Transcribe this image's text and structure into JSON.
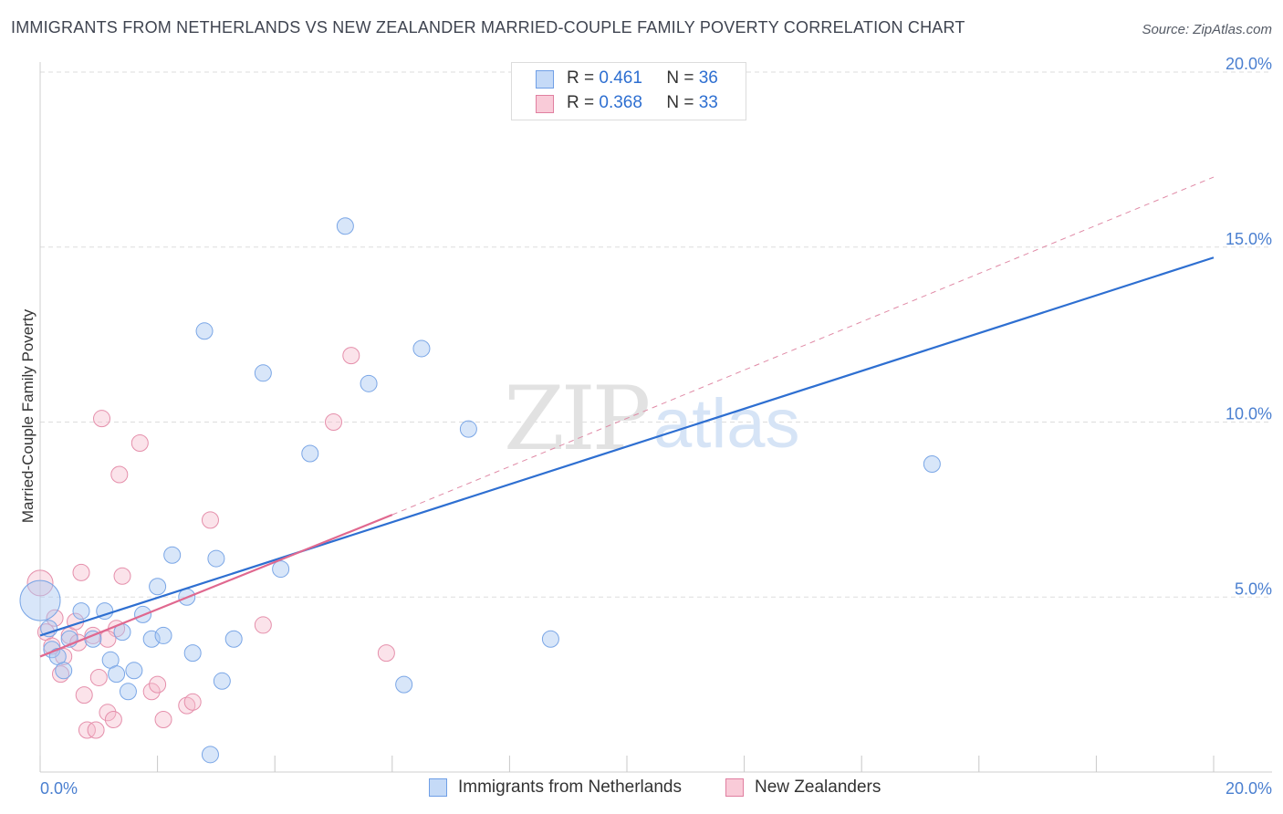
{
  "title": "IMMIGRANTS FROM NETHERLANDS VS NEW ZEALANDER MARRIED-COUPLE FAMILY POVERTY CORRELATION CHART",
  "source": "Source: ZipAtlas.com",
  "watermark": {
    "zip": "ZIP",
    "atlas": "atlas"
  },
  "legend": {
    "r_label": "R =",
    "n_label": "N =",
    "rows": [
      {
        "r": "0.461",
        "n": "36",
        "color": "#6f9fe6",
        "fill": "#c5daf7"
      },
      {
        "r": "0.368",
        "n": "33",
        "color": "#e07fa0",
        "fill": "#f9cbd8"
      }
    ]
  },
  "bottom_legend": {
    "series1": "Immigrants from Netherlands",
    "series2": "New Zealanders"
  },
  "colors": {
    "blue": "#2e6fd1",
    "pink": "#e0688f",
    "grid": "#dddddd",
    "axis_label": "#4a7fd0"
  },
  "chart_data": {
    "type": "scatter",
    "title": "IMMIGRANTS FROM NETHERLANDS VS NEW ZEALANDER MARRIED-COUPLE FAMILY POVERTY CORRELATION CHART",
    "xlabel": "",
    "ylabel": "Married-Couple Family Poverty",
    "xlim": [
      0,
      20
    ],
    "ylim": [
      0,
      20
    ],
    "x_tick_labels": [
      "0.0%",
      "20.0%"
    ],
    "y_ticks": [
      5,
      10,
      15,
      20
    ],
    "y_tick_labels": [
      "5.0%",
      "10.0%",
      "15.0%",
      "20.0%"
    ],
    "series": [
      {
        "name": "Immigrants from Netherlands",
        "r": 0.461,
        "n": 36,
        "points": [
          [
            0.0,
            4.9,
            22
          ],
          [
            0.2,
            3.5,
            9
          ],
          [
            0.3,
            3.3,
            9
          ],
          [
            0.4,
            2.9,
            9
          ],
          [
            0.5,
            3.8,
            9
          ],
          [
            0.7,
            4.6,
            9
          ],
          [
            0.9,
            3.8,
            9
          ],
          [
            1.1,
            4.6,
            9
          ],
          [
            1.2,
            3.2,
            9
          ],
          [
            1.3,
            2.8,
            9
          ],
          [
            1.4,
            4.0,
            9
          ],
          [
            1.5,
            2.3,
            9
          ],
          [
            1.6,
            2.9,
            9
          ],
          [
            1.75,
            4.5,
            9
          ],
          [
            1.9,
            3.8,
            9
          ],
          [
            2.0,
            5.3,
            9
          ],
          [
            2.1,
            3.9,
            9
          ],
          [
            2.25,
            6.2,
            9
          ],
          [
            2.5,
            5.0,
            9
          ],
          [
            2.6,
            3.4,
            9
          ],
          [
            2.8,
            12.6,
            9
          ],
          [
            2.9,
            0.5,
            9
          ],
          [
            3.0,
            6.1,
            9
          ],
          [
            3.1,
            2.6,
            9
          ],
          [
            3.3,
            3.8,
            9
          ],
          [
            3.8,
            11.4,
            9
          ],
          [
            4.1,
            5.8,
            9
          ],
          [
            4.6,
            9.1,
            9
          ],
          [
            5.2,
            15.6,
            9
          ],
          [
            5.6,
            11.1,
            9
          ],
          [
            6.2,
            2.5,
            9
          ],
          [
            6.5,
            12.1,
            9
          ],
          [
            7.3,
            9.8,
            9
          ],
          [
            8.7,
            3.8,
            9
          ],
          [
            15.2,
            8.8,
            9
          ],
          [
            0.15,
            4.1,
            9
          ]
        ],
        "trend": {
          "x": [
            0,
            20
          ],
          "y": [
            3.9,
            14.7
          ]
        }
      },
      {
        "name": "New Zealanders",
        "r": 0.368,
        "n": 33,
        "points": [
          [
            0.0,
            5.4,
            14
          ],
          [
            0.1,
            4.0,
            9
          ],
          [
            0.2,
            3.6,
            9
          ],
          [
            0.25,
            4.4,
            9
          ],
          [
            0.35,
            2.8,
            9
          ],
          [
            0.4,
            3.3,
            9
          ],
          [
            0.5,
            3.9,
            9
          ],
          [
            0.6,
            4.3,
            9
          ],
          [
            0.65,
            3.7,
            9
          ],
          [
            0.7,
            5.7,
            9
          ],
          [
            0.75,
            2.2,
            9
          ],
          [
            0.8,
            1.2,
            9
          ],
          [
            0.9,
            3.9,
            9
          ],
          [
            0.95,
            1.2,
            9
          ],
          [
            1.0,
            2.7,
            9
          ],
          [
            1.05,
            10.1,
            9
          ],
          [
            1.15,
            1.7,
            9
          ],
          [
            1.25,
            1.5,
            9
          ],
          [
            1.3,
            4.1,
            9
          ],
          [
            1.35,
            8.5,
            9
          ],
          [
            1.4,
            5.6,
            9
          ],
          [
            1.7,
            9.4,
            9
          ],
          [
            1.9,
            2.3,
            9
          ],
          [
            2.0,
            2.5,
            9
          ],
          [
            2.1,
            1.5,
            9
          ],
          [
            2.5,
            1.9,
            9
          ],
          [
            2.6,
            2.0,
            9
          ],
          [
            2.9,
            7.2,
            9
          ],
          [
            3.8,
            4.2,
            9
          ],
          [
            5.0,
            10.0,
            9
          ],
          [
            5.3,
            11.9,
            9
          ],
          [
            5.9,
            3.4,
            9
          ],
          [
            1.15,
            3.8,
            9
          ]
        ],
        "trend": {
          "x": [
            0,
            6.0
          ],
          "y": [
            3.3,
            7.35
          ]
        },
        "trend_extended": {
          "x": [
            6.0,
            20
          ],
          "y": [
            7.35,
            17.0
          ]
        }
      }
    ]
  }
}
